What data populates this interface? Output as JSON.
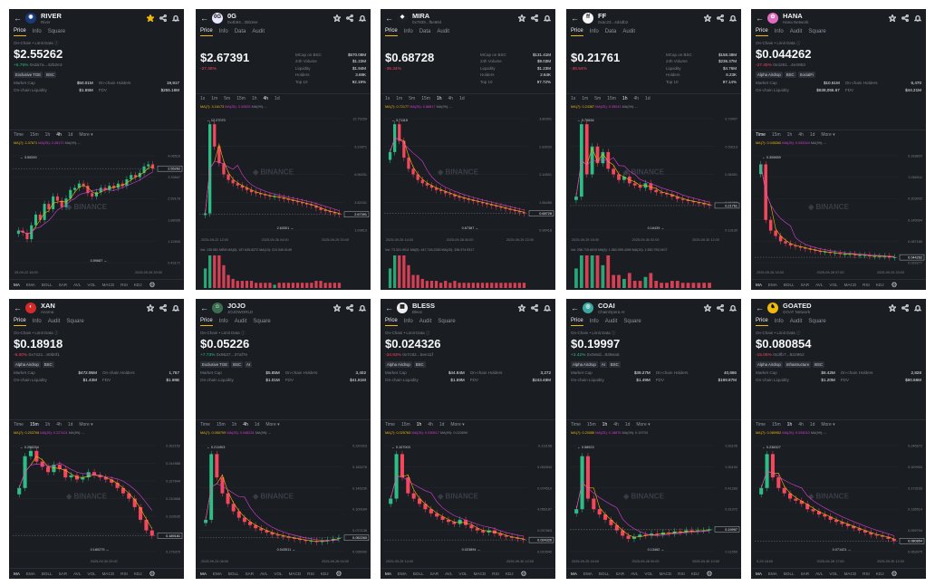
{
  "cards": [
    {
      "symbol": "RIVER",
      "subtitle": "River",
      "logo": {
        "bg": "#1b3a7a",
        "glyph": "◉"
      },
      "starred": true,
      "layout": "tabs-square",
      "tabs": [
        "Price",
        "Info",
        "Square"
      ],
      "chain_label": "On-Chain • Limit Data ⓘ",
      "price": "$2.55262",
      "change": "+6.76%",
      "dir": "up",
      "address": "0xda7a...42b2e3",
      "tags": [
        "Exclusive TGE",
        "BSC"
      ],
      "stats": [
        [
          "Market Cap",
          "$50.01M",
          "On-chain Holders",
          "19,917"
        ],
        [
          "On-chain Liquidity",
          "$1.65M",
          "FDV",
          "$255.16M"
        ]
      ],
      "timeframes": [
        "Time",
        "15m",
        "1h",
        "4h",
        "1d",
        "More ▾"
      ],
      "tf_active": 3,
      "ma_line": {
        "m7": "MA(7): 2.37671",
        "m25": "MA(25): 2.28172",
        "m99": "MA(99): --"
      },
      "axis": [
        "4.08516",
        "3.33847",
        "2.59178",
        "1.88035",
        "1.12840",
        "0.43171"
      ],
      "hi_label": "3.50000",
      "lo_label": "0.59687",
      "last_label": "2.55262",
      "dates": [
        "25-09-22 16:00",
        "2025-09-26 20:00"
      ],
      "profile": [
        0.3,
        0.28,
        0.22,
        0.35,
        0.45,
        0.4,
        0.55,
        0.5,
        0.62,
        0.58,
        0.52,
        0.6,
        0.68,
        0.7,
        0.74,
        0.72,
        0.65,
        0.62,
        0.66,
        0.7,
        0.68,
        0.72,
        0.7,
        0.74,
        0.72,
        0.78,
        0.82,
        0.8,
        0.84,
        0.9,
        0.92,
        0.88
      ],
      "indicators": [
        "MA",
        "EMA",
        "BOLL",
        "SAR",
        "AVL",
        "VOL",
        "MACD",
        "RSI",
        "KDJ"
      ]
    },
    {
      "symbol": "0G",
      "subtitle": "0x4b94...35b3ee",
      "logo": {
        "bg": "#e9e6ff",
        "glyph": "0G"
      },
      "starred": false,
      "layout": "tabs-audit",
      "tabs": [
        "Price",
        "Info",
        "Data",
        "Audit"
      ],
      "price": "$2.67391",
      "change": "-27.45%",
      "dir": "down",
      "side_stats": [
        [
          "MCap on BSC",
          "$570.08M"
        ],
        [
          "24h Volume",
          "$1.22M"
        ],
        [
          "Liquidity",
          "$1.94M"
        ],
        [
          "Holders",
          "3.69K"
        ],
        [
          "Top 10",
          "92.19%"
        ]
      ],
      "timeframes": [
        "1s",
        "1m",
        "5m",
        "15m",
        "1h",
        "4h",
        "1d"
      ],
      "tf_active": 5,
      "ma_line": {
        "m7": "MA(7): 3.16173",
        "m25": "MA(25): 3.30525",
        "m99": "MA(99): --"
      },
      "axis": [
        "12.75259",
        "9.22871",
        "6.56251",
        "3.82031",
        "1.09813"
      ],
      "hi_label": "12.27070",
      "lo_label": "2.63301",
      "last_label": "2.67391",
      "vol_line": "Vol: 135.581 MEM  MA(5): 197.635.8372  MA(10): 210.349.0149",
      "dates": [
        "2025-09-22 12:00",
        "2025-09-26 04:00",
        "2025-09-29 20:00"
      ],
      "profile": [
        0.15,
        0.95,
        0.75,
        0.6,
        0.5,
        0.45,
        0.42,
        0.4,
        0.38,
        0.36,
        0.34,
        0.33,
        0.32,
        0.31,
        0.3,
        0.3,
        0.29,
        0.28,
        0.27,
        0.26,
        0.25,
        0.24,
        0.23,
        0.22,
        0.2,
        0.18,
        0.17,
        0.16,
        0.15,
        0.14
      ],
      "indicators": []
    },
    {
      "symbol": "MIRA",
      "subtitle": "0x7839...fbe684",
      "logo": {
        "bg": "#1e2026",
        "glyph": "◆"
      },
      "starred": false,
      "layout": "tabs-audit",
      "tabs": [
        "Price",
        "Info",
        "Data",
        "Audit"
      ],
      "price": "$0.68728",
      "change": "-35.34%",
      "dir": "down",
      "side_stats": [
        [
          "MCap on BSC",
          "$131.41M"
        ],
        [
          "24h Volume",
          "$9.03M"
        ],
        [
          "Liquidity",
          "$1.23M"
        ],
        [
          "Holders",
          "2.64K"
        ],
        [
          "Top 10",
          "97.72%"
        ]
      ],
      "timeframes": [
        "1s",
        "1m",
        "5m",
        "15m",
        "1h",
        "4h",
        "1d"
      ],
      "tf_active": 4,
      "ma_line": {
        "m7": "MA(7): 0.72177",
        "m25": "MA(25): 0.88817",
        "m99": "MA(99): --"
      },
      "axis": [
        "3.80301",
        "2.83020",
        "2.16501",
        "1.56456",
        "0.96418"
      ],
      "hi_label": "3.71115",
      "lo_label": "0.67387",
      "last_label": "0.68728",
      "vol_line": "Vol: 73.321.9011  MA(5): 447.718.2283  MA(10): 336.974.9317",
      "dates": [
        "2025-09-26 14:00",
        "2025-09-28 00:00",
        "2025-09-29 22:00"
      ],
      "profile": [
        0.7,
        0.95,
        0.8,
        0.65,
        0.55,
        0.5,
        0.45,
        0.42,
        0.4,
        0.38,
        0.36,
        0.35,
        0.33,
        0.32,
        0.3,
        0.29,
        0.28,
        0.27,
        0.26,
        0.25,
        0.24,
        0.23,
        0.22,
        0.21,
        0.2,
        0.19,
        0.18,
        0.17,
        0.16,
        0.15
      ],
      "indicators": []
    },
    {
      "symbol": "FF",
      "subtitle": "0xac23...4d4db2",
      "logo": {
        "bg": "#f5f5f5",
        "glyph": "ff"
      },
      "starred": false,
      "layout": "tabs-audit",
      "tabs": [
        "Price",
        "Info",
        "Data",
        "Audit"
      ],
      "price": "$0.21761",
      "change": "-36.54%",
      "dir": "down",
      "side_stats": [
        [
          "MCap on BSC",
          "$158.38M"
        ],
        [
          "24h Volume",
          "$236.37M"
        ],
        [
          "Liquidity",
          "$4.76M"
        ],
        [
          "Holders",
          "6.23K"
        ],
        [
          "Top 10",
          "97.14%"
        ]
      ],
      "timeframes": [
        "1s",
        "1m",
        "5m",
        "15m",
        "1h",
        "4h",
        "1d"
      ],
      "tf_active": 4,
      "ma_line": {
        "m7": "MA(7): 0.24387",
        "m25": "MA(25): 0.35041",
        "m99": "MA(99): --"
      },
      "axis": [
        "0.73407",
        "0.53113",
        "0.36301",
        "0.21768",
        "0.13130"
      ],
      "hi_label": "0.70634",
      "lo_label": "0.16439",
      "last_label": "0.21761",
      "vol_line": "Vol: 256.715.6015  MA(5): 1.560.099.4390  MA(10): 1.550.753.9107",
      "dates": [
        "2025-09-29 16:00",
        "2025-09-30 02:00",
        "2025-09-30 12:00"
      ],
      "profile": [
        0.3,
        0.95,
        0.5,
        0.75,
        0.6,
        0.7,
        0.55,
        0.5,
        0.45,
        0.48,
        0.42,
        0.4,
        0.38,
        0.42,
        0.36,
        0.34,
        0.33,
        0.32,
        0.3,
        0.28,
        0.27,
        0.26,
        0.25,
        0.24,
        0.23,
        0.22
      ],
      "indicators": []
    },
    {
      "symbol": "HANA",
      "subtitle": "Hana Network",
      "logo": {
        "bg": "#e06abf",
        "glyph": "✿"
      },
      "starred": false,
      "layout": "tabs-square",
      "tabs": [
        "Price",
        "Info",
        "Audit",
        "Square"
      ],
      "chain_label": "On-Chain • Limit Data ⓘ",
      "price": "$0.044262",
      "change": "-27.45%",
      "dir": "down",
      "address": "0x4261...4e4953",
      "tags": [
        "Alpha Airdrop",
        "BSC",
        "SocialFi"
      ],
      "stats": [
        [
          "Market Cap",
          "$10.61M",
          "On-chain Holders",
          "6,470"
        ],
        [
          "On-chain Liquidity",
          "$638,055.67",
          "FDV",
          "$44.21M"
        ]
      ],
      "timeframes": [
        "Time",
        "15m",
        "1h",
        "4h",
        "1d",
        "More ▾"
      ],
      "tf_active": 0,
      "ma_line": {
        "m7": "MA(7): 0.045260",
        "m25": "MA(25): 0.053344",
        "m99": "MA(99): --"
      },
      "axis": [
        "0.318820",
        "0.260911",
        "0.203002",
        "0.145094",
        "0.087185",
        "0.029277"
      ],
      "hi_label": "0.305659",
      "lo_label": "",
      "last_label": "0.044262",
      "dates": [
        "2025-09-26 16:00",
        "2025-09-28 07:00",
        "2025-09-29 20:00"
      ],
      "profile": [
        0.92,
        0.4,
        0.3,
        0.25,
        0.2,
        0.18,
        0.16,
        0.15,
        0.14,
        0.13,
        0.12,
        0.11,
        0.1,
        0.1,
        0.09,
        0.09,
        0.08,
        0.08,
        0.08,
        0.07,
        0.07,
        0.07,
        0.06,
        0.06,
        0.06,
        0.06,
        0.05,
        0.05
      ],
      "indicators": [
        "MA",
        "EMA",
        "BOLL",
        "SAR",
        "AVL",
        "VOL",
        "MACD",
        "RSI",
        "KDJ"
      ]
    },
    {
      "symbol": "XAN",
      "subtitle": "Anoma",
      "logo": {
        "bg": "#d42a2a",
        "glyph": "◐"
      },
      "starred": false,
      "layout": "tabs-square",
      "tabs": [
        "Price",
        "Info",
        "Audit",
        "Square"
      ],
      "chain_label": "On-Chain • Limit Data ⓘ",
      "price": "$0.18918",
      "change": "-5.00%",
      "dir": "down",
      "address": "0x7421...90b0f1",
      "tags": [
        "Alpha Airdrop",
        "BSC"
      ],
      "stats": [
        [
          "Market Cap",
          "$472.95M",
          "On-chain Holders",
          "1,757"
        ],
        [
          "On-chain Liquidity",
          "$1.43M",
          "FDV",
          "$1.89B"
        ]
      ],
      "timeframes": [
        "Time",
        "15m",
        "1h",
        "4h",
        "1d",
        "More ▾"
      ],
      "tf_active": 1,
      "ma_line": {
        "m7": "MA(7): 0.203708",
        "m25": "MA(25): 0.227421",
        "m99": "MA(99): --"
      },
      "axis": [
        "0.262152",
        "0.244988",
        "0.227844",
        "0.210688",
        "0.193535",
        "0.189181",
        "0.176379"
      ],
      "hi_label": "0.258254",
      "lo_label": "0.180279",
      "last_label": "0.189181",
      "dates": [
        "2025-09-30 20:00"
      ],
      "profile": [
        0.6,
        0.9,
        0.95,
        0.85,
        0.8,
        0.75,
        0.82,
        0.78,
        0.7,
        0.72,
        0.68,
        0.7,
        0.75,
        0.72,
        0.7,
        0.68,
        0.65,
        0.6,
        0.55,
        0.5,
        0.42,
        0.3,
        0.2,
        0.15
      ],
      "indicators": [
        "MA",
        "EMA",
        "BOLL",
        "SAR",
        "AVL",
        "VOL",
        "MACD",
        "RSI",
        "KDJ"
      ]
    },
    {
      "symbol": "JOJO",
      "subtitle": "JOJOWORLD",
      "logo": {
        "bg": "#3b6e4f",
        "glyph": "☺"
      },
      "starred": false,
      "layout": "tabs-square",
      "tabs": [
        "Price",
        "Info",
        "Audit",
        "Square"
      ],
      "chain_label": "On-Chain • Limit Data ⓘ",
      "price": "$0.05226",
      "change": "+7.73%",
      "dir": "up",
      "address": "0x9537...37af7e",
      "tags": [
        "Exclusive TGE",
        "BSC",
        "AI"
      ],
      "stats": [
        [
          "Market Cap",
          "$5.85M",
          "On-chain Holders",
          "3,402"
        ],
        [
          "On-chain Liquidity",
          "$1.01M",
          "FDV",
          "$41.81M"
        ]
      ],
      "timeframes": [
        "Time",
        "15m",
        "1h",
        "4h",
        "1d",
        "More ▾"
      ],
      "tf_active": 3,
      "ma_line": {
        "m7": "MA(7): 0.055709",
        "m25": "MA(25): 0.048231",
        "m99": "MA(99): --"
      },
      "axis": [
        "0.220323",
        "0.183276",
        "0.146230",
        "0.109184",
        "0.072138",
        "0.035092"
      ],
      "hi_label": "0.211903",
      "lo_label": "0.043511",
      "last_label": "0.052260",
      "dates": [
        "2025-09-24 08:00",
        "2025-09-26 04:00"
      ],
      "profile": [
        0.3,
        0.92,
        0.7,
        0.55,
        0.45,
        0.38,
        0.32,
        0.28,
        0.25,
        0.22,
        0.2,
        0.18,
        0.16,
        0.15,
        0.14,
        0.13,
        0.12,
        0.11,
        0.1,
        0.1,
        0.09,
        0.1,
        0.11,
        0.12,
        0.13
      ],
      "indicators": [
        "MA",
        "EMA",
        "BOLL",
        "SAR",
        "AVL",
        "VOL",
        "MACD",
        "RSI",
        "KDJ"
      ]
    },
    {
      "symbol": "BLESS",
      "subtitle": "Bless",
      "logo": {
        "bg": "#f0f0f0",
        "glyph": "▦"
      },
      "starred": false,
      "layout": "tabs-square",
      "tabs": [
        "Price",
        "Info",
        "Audit",
        "Square"
      ],
      "chain_label": "On-Chain • Limit Data ⓘ",
      "price": "$0.024326",
      "change": "-34.93%",
      "dir": "down",
      "address": "0x7c82...5ee11f",
      "tags": [
        "Alpha Airdrop",
        "BSC"
      ],
      "stats": [
        [
          "Market Cap",
          "$44.84M",
          "On-chain Holders",
          "3,272"
        ],
        [
          "On-chain Liquidity",
          "$1.59M",
          "FDV",
          "$243.48M"
        ]
      ],
      "timeframes": [
        "Time",
        "15m",
        "1h",
        "4h",
        "1d",
        "More ▾"
      ],
      "tf_active": 2,
      "ma_line": {
        "m7": "MA(7): 0.025783",
        "m25": "MA(25): 0.030617",
        "m99": "MA(99): 0.023090"
      },
      "axis": [
        "0.111158",
        "0.092834",
        "0.074510",
        "0.056187",
        "0.037863",
        "0.019540"
      ],
      "hi_label": "0.107003",
      "lo_label": "0.023894",
      "last_label": "0.024326",
      "dates": [
        "2025-09-29 14:00",
        "2025-09-30 12:00"
      ],
      "profile": [
        0.5,
        0.92,
        0.7,
        0.55,
        0.5,
        0.45,
        0.4,
        0.36,
        0.33,
        0.3,
        0.28,
        0.26,
        0.3,
        0.25,
        0.22,
        0.2,
        0.18,
        0.2,
        0.17,
        0.15,
        0.14,
        0.13,
        0.12,
        0.11
      ],
      "indicators": [
        "MA",
        "EMA",
        "BOLL",
        "SAR",
        "AVL",
        "VOL",
        "MACD",
        "RSI",
        "KDJ"
      ]
    },
    {
      "symbol": "COAI",
      "subtitle": "ChainOpera AI",
      "logo": {
        "bg": "#3aa7a0",
        "glyph": "◎"
      },
      "starred": false,
      "layout": "tabs-square",
      "tabs": [
        "Price",
        "Info",
        "Audit",
        "Square"
      ],
      "chain_label": "On-Chain • Limit Data ⓘ",
      "price": "$0.19997",
      "change": "+3.42%",
      "dir": "up",
      "address": "0x0e8d...838ea5",
      "tags": [
        "Alpha Airdrop",
        "AI",
        "BSC"
      ],
      "stats": [
        [
          "Market Cap",
          "$39.27M",
          "On-chain Holders",
          "40,866"
        ],
        [
          "On-chain Liquidity",
          "$1.49M",
          "FDV",
          "$199.87M"
        ]
      ],
      "timeframes": [
        "Time",
        "15m",
        "1h",
        "4h",
        "1d",
        "More ▾"
      ],
      "tf_active": 2,
      "ma_line": {
        "m7": "MA(7): 0.20085",
        "m25": "MA(25): 0.18876",
        "m99": "MA(99): 0.19703"
      },
      "axis": [
        "0.61105",
        "0.51194",
        "0.41283",
        "0.31372",
        "0.21461",
        "0.11550"
      ],
      "hi_label": "0.58923",
      "lo_label": "0.13462",
      "last_label": "0.19997",
      "dates": [
        "2025-09-25 16:00",
        "2025-09-28 00:00",
        "2025-09-30 10:00"
      ],
      "profile": [
        0.4,
        0.9,
        0.5,
        0.4,
        0.35,
        0.3,
        0.25,
        0.2,
        0.15,
        0.12,
        0.14,
        0.16,
        0.15,
        0.17,
        0.16,
        0.18,
        0.17,
        0.19,
        0.18,
        0.2,
        0.19,
        0.2,
        0.2,
        0.21
      ],
      "indicators": [
        "MA",
        "EMA",
        "BOLL",
        "SAR",
        "AVL",
        "VOL",
        "MACD",
        "RSI",
        "KDJ"
      ]
    },
    {
      "symbol": "GOATED",
      "subtitle": "GOAT Network",
      "logo": {
        "bg": "#f0b90b",
        "glyph": "♞"
      },
      "starred": false,
      "layout": "tabs-square",
      "tabs": [
        "Price",
        "Info",
        "Audit",
        "Square"
      ],
      "chain_label": "On-Chain • Limit Data ⓘ",
      "price": "$0.080854",
      "change": "-15.06%",
      "dir": "down",
      "address": "0x3fb7...822962",
      "tags": [
        "Alpha Airdrop",
        "Infrastructure",
        "BSC"
      ],
      "stats": [
        [
          "Market Cap",
          "$8.42M",
          "On-chain Holders",
          "2,828"
        ],
        [
          "On-chain Liquidity",
          "$1.20M",
          "FDV",
          "$80.66M"
        ]
      ],
      "timeframes": [
        "Time",
        "15m",
        "1h",
        "4h",
        "1d",
        "More ▾"
      ],
      "tf_active": 2,
      "ma_line": {
        "m7": "MA(7): 0.080952",
        "m25": "MA(25): 0.093010",
        "m99": "MA(99): --"
      },
      "axis": [
        "0.246672",
        "0.209953",
        "0.173233",
        "0.136514",
        "0.099794",
        "0.063075"
      ],
      "hi_label": "0.238327",
      "lo_label": "0.071421",
      "last_label": "0.080854",
      "dates": [
        "5-25 18:00",
        "2025-09-28 17:00",
        "2025-09-30 12:00"
      ],
      "profile": [
        0.6,
        0.92,
        0.7,
        0.6,
        0.55,
        0.5,
        0.48,
        0.45,
        0.4,
        0.38,
        0.35,
        0.33,
        0.3,
        0.28,
        0.26,
        0.24,
        0.22,
        0.2,
        0.18,
        0.16,
        0.15,
        0.14,
        0.12,
        0.1
      ],
      "indicators": [
        "MA",
        "EMA",
        "BOLL",
        "SAR",
        "AVL",
        "VOL",
        "MACD",
        "RSI",
        "KDJ"
      ]
    }
  ]
}
